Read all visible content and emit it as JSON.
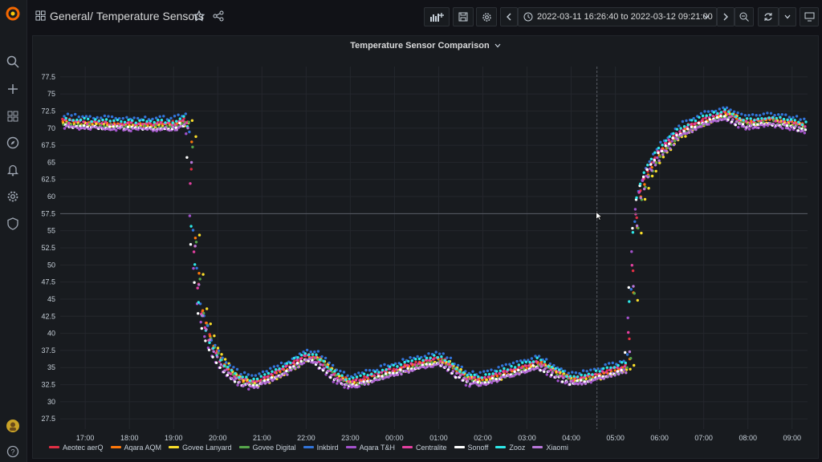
{
  "header": {
    "folder": "General",
    "separator": "/",
    "dashboard_title": "Temperature Sensors",
    "time_range": "2022-03-11 16:26:40 to 2022-03-12 09:21:00"
  },
  "sidebar": {
    "items": [
      "logo",
      "search",
      "create",
      "dashboards",
      "explore",
      "alerting",
      "configuration",
      "server-admin"
    ],
    "bottom": [
      "user-avatar",
      "help"
    ]
  },
  "colors": {
    "background": "#111217",
    "panel": "#181b1f",
    "accent": "#f46800"
  },
  "panel": {
    "title": "Temperature Sensor Comparison"
  },
  "chart_data": {
    "type": "scatter",
    "title": "Temperature Sensor Comparison",
    "xlabel": "",
    "ylabel": "",
    "x_ticks": [
      "17:00",
      "18:00",
      "19:00",
      "20:00",
      "21:00",
      "22:00",
      "23:00",
      "00:00",
      "01:00",
      "02:00",
      "03:00",
      "04:00",
      "05:00",
      "06:00",
      "07:00",
      "08:00",
      "09:00"
    ],
    "y_ticks": [
      "27.5",
      "30",
      "32.5",
      "35",
      "37.5",
      "40",
      "42.5",
      "45",
      "47.5",
      "50",
      "52.5",
      "55",
      "57.5",
      "60",
      "62.5",
      "65",
      "67.5",
      "70",
      "72.5",
      "75",
      "77.5"
    ],
    "xlim": [
      "16:26",
      "09:21"
    ],
    "ylim": [
      26,
      79
    ],
    "grid": true,
    "legend_position": "bottom",
    "base_curve": {
      "x": [
        "16:30",
        "17:00",
        "18:00",
        "19:00",
        "19:15",
        "19:20",
        "19:25",
        "19:35",
        "19:50",
        "20:10",
        "20:30",
        "20:45",
        "21:00",
        "21:30",
        "22:00",
        "22:15",
        "22:40",
        "23:00",
        "23:30",
        "00:00",
        "00:30",
        "01:00",
        "01:15",
        "01:40",
        "02:00",
        "02:30",
        "03:00",
        "03:15",
        "03:40",
        "04:00",
        "04:30",
        "05:00",
        "05:15",
        "05:20",
        "05:25",
        "05:30",
        "05:40",
        "06:00",
        "06:30",
        "07:00",
        "07:30",
        "07:45",
        "08:00",
        "08:30",
        "09:00",
        "09:15"
      ],
      "y": [
        71.2,
        71.0,
        70.8,
        70.8,
        71.5,
        70.0,
        55.0,
        44.0,
        38.5,
        35.0,
        33.5,
        33.0,
        33.5,
        35.0,
        37.0,
        36.5,
        34.0,
        33.0,
        34.0,
        35.0,
        35.8,
        36.5,
        35.5,
        33.5,
        33.5,
        34.5,
        35.5,
        36.0,
        34.5,
        33.5,
        34.0,
        35.0,
        35.5,
        45.0,
        55.0,
        60.0,
        63.5,
        67.0,
        70.0,
        71.5,
        72.5,
        71.5,
        71.0,
        71.5,
        71.0,
        70.5
      ]
    },
    "series": [
      {
        "name": "Aeotec aerQ",
        "color": "#e02f44",
        "offset": 0.0,
        "lag_min": 2
      },
      {
        "name": "Aqara AQM",
        "color": "#ff780a",
        "offset": -0.3,
        "lag_min": 4
      },
      {
        "name": "Govee Lanyard",
        "color": "#fade2a",
        "offset": -0.5,
        "lag_min": 10
      },
      {
        "name": "Govee Digital",
        "color": "#56a64b",
        "offset": -0.6,
        "lag_min": 5
      },
      {
        "name": "Inkbird",
        "color": "#3274d9",
        "offset": 0.7,
        "lag_min": 1
      },
      {
        "name": "Aqara T&H",
        "color": "#a352cc",
        "offset": -1.0,
        "lag_min": -2
      },
      {
        "name": "Centralite",
        "color": "#e340a0",
        "offset": -0.2,
        "lag_min": 0
      },
      {
        "name": "Sonoff",
        "color": "#ffffff",
        "offset": -0.8,
        "lag_min": -3
      },
      {
        "name": "Zooz",
        "color": "#2ee8e8",
        "offset": 0.2,
        "lag_min": -1
      },
      {
        "name": "Xiaomi",
        "color": "#b877d9",
        "offset": -0.9,
        "lag_min": 3
      }
    ]
  }
}
